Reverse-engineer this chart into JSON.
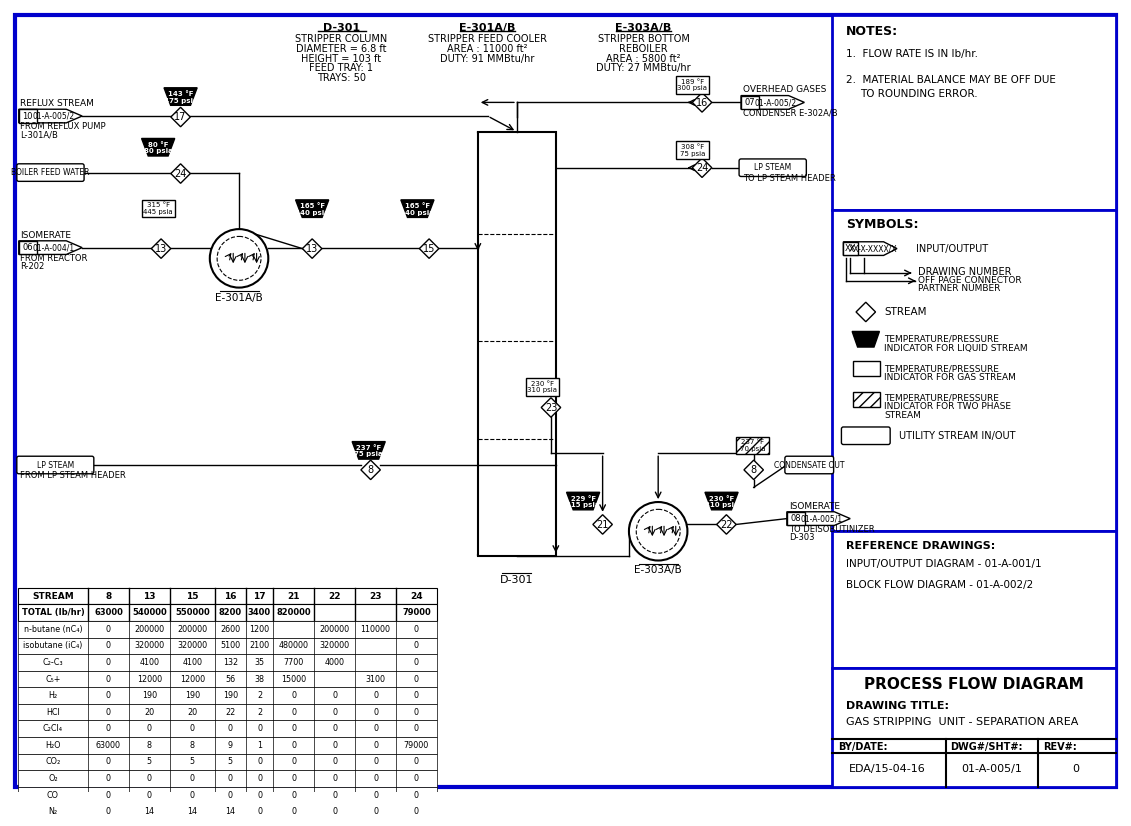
{
  "bg_color": "#ffffff",
  "border_color": "#0000cc",
  "title": "PROCESS FLOW DIAGRAM",
  "drawing_title": "GAS STRIPPING UNIT - SEPARATION AREA",
  "by_date": "EDA/15-04-16",
  "dwg_sht": "01-A-005/1",
  "rev": "0",
  "notes": [
    "FLOW RATE IS IN lb/hr.",
    "MATERIAL BALANCE MAY BE OFF DUE\n   TO ROUNDING ERROR."
  ],
  "equipment_labels": {
    "D301": {
      "name": "D-301",
      "desc": "STRIPPER COLUMN",
      "details": [
        "DIAMETER = 6.8 ft",
        "HEIGHT = 103 ft",
        "FEED TRAY: 1",
        "TRAYS: 50"
      ]
    },
    "E301AB": {
      "name": "E-301A/B",
      "desc": "STRIPPER FEED COOLER",
      "details": [
        "AREA : 11000 ft²",
        "DUTY: 91 MMBtu/hr"
      ]
    },
    "E303AB": {
      "name": "E-303A/B",
      "desc": "STRIPPER BOTTOM",
      "subdesc": "REBOILER",
      "details": [
        "AREA : 5800 ft²",
        "DUTY: 27 MMBtu/hr"
      ]
    }
  },
  "stream_table": {
    "headers": [
      "STREAM",
      "8",
      "13",
      "15",
      "16",
      "17",
      "21",
      "22",
      "23",
      "24"
    ],
    "rows": [
      [
        "TOTAL (lb/hr)",
        "63000",
        "540000",
        "550000",
        "8200",
        "3400",
        "820000",
        "",
        "",
        "79000"
      ],
      [
        "n-butane (nC₄)",
        "0",
        "200000",
        "200000",
        "2600",
        "1200",
        "",
        "200000",
        "110000",
        "0"
      ],
      [
        "isobutane (iC₄)",
        "0",
        "320000",
        "320000",
        "5100",
        "2100",
        "480000",
        "320000",
        "",
        "0"
      ],
      [
        "C₂-C₃",
        "0",
        "4100",
        "4100",
        "132",
        "35",
        "7700",
        "4000",
        "",
        "0"
      ],
      [
        "C₅+",
        "0",
        "12000",
        "12000",
        "56",
        "38",
        "15000",
        "",
        "3100",
        "0"
      ],
      [
        "H₂",
        "0",
        "190",
        "190",
        "190",
        "2",
        "0",
        "0",
        "0",
        "0"
      ],
      [
        "HCl",
        "0",
        "20",
        "20",
        "22",
        "2",
        "0",
        "0",
        "0",
        "0"
      ],
      [
        "C₂Cl₄",
        "0",
        "0",
        "0",
        "0",
        "0",
        "0",
        "0",
        "0",
        "0"
      ],
      [
        "H₂O",
        "63000",
        "8",
        "8",
        "9",
        "1",
        "0",
        "0",
        "0",
        "79000"
      ],
      [
        "CO₂",
        "0",
        "5",
        "5",
        "5",
        "0",
        "0",
        "0",
        "0",
        "0"
      ],
      [
        "O₂",
        "0",
        "0",
        "0",
        "0",
        "0",
        "0",
        "0",
        "0",
        "0"
      ],
      [
        "CO",
        "0",
        "0",
        "0",
        "0",
        "0",
        "0",
        "0",
        "0",
        "0"
      ],
      [
        "N₂",
        "0",
        "14",
        "14",
        "14",
        "0",
        "0",
        "0",
        "0",
        "0"
      ]
    ]
  }
}
